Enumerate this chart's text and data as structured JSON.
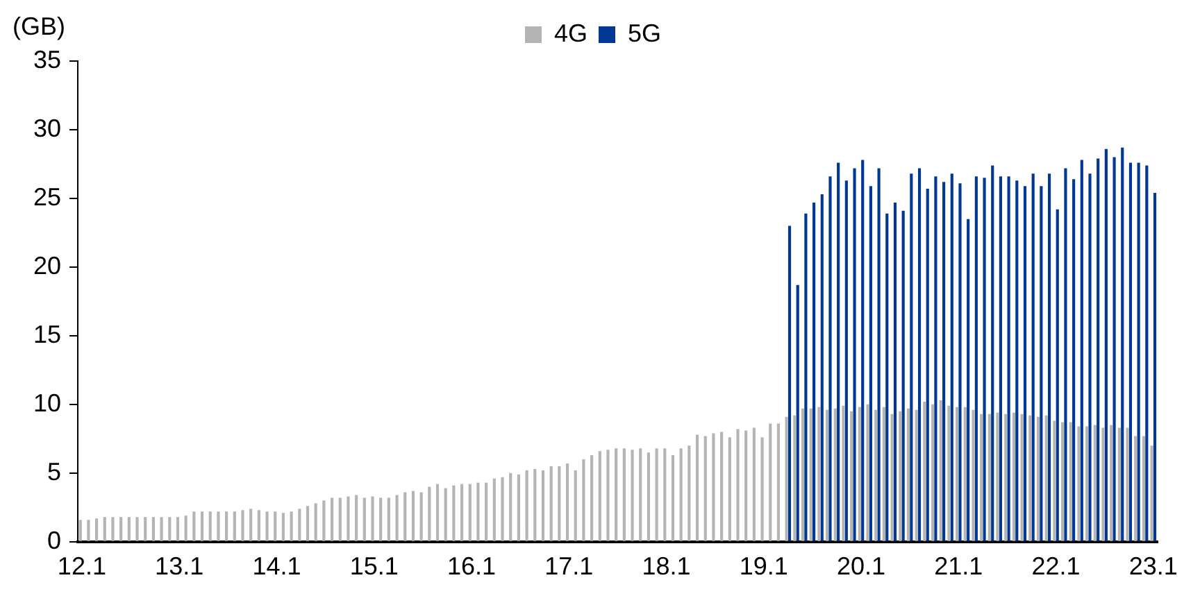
{
  "chart_data": {
    "type": "bar",
    "ylabel": "(GB)",
    "categories": [
      "12.1",
      null,
      null,
      null,
      null,
      null,
      null,
      null,
      null,
      null,
      null,
      null,
      "13.1",
      null,
      null,
      null,
      null,
      null,
      null,
      null,
      null,
      null,
      null,
      null,
      "14.1",
      null,
      null,
      null,
      null,
      null,
      null,
      null,
      null,
      null,
      null,
      null,
      "15.1",
      null,
      null,
      null,
      null,
      null,
      null,
      null,
      null,
      null,
      null,
      null,
      "16.1",
      null,
      null,
      null,
      null,
      null,
      null,
      null,
      null,
      null,
      null,
      null,
      "17.1",
      null,
      null,
      null,
      null,
      null,
      null,
      null,
      null,
      null,
      null,
      null,
      "18.1",
      null,
      null,
      null,
      null,
      null,
      null,
      null,
      null,
      null,
      null,
      null,
      "19.1",
      null,
      null,
      null,
      null,
      null,
      null,
      null,
      null,
      null,
      null,
      null,
      "20.1",
      null,
      null,
      null,
      null,
      null,
      null,
      null,
      null,
      null,
      null,
      null,
      "21.1",
      null,
      null,
      null,
      null,
      null,
      null,
      null,
      null,
      null,
      null,
      null,
      "22.1",
      null,
      null,
      null,
      null,
      null,
      null,
      null,
      null,
      null,
      null,
      null,
      "23.1"
    ],
    "series": [
      {
        "name": "4G",
        "color": "#b4b4b4",
        "values": [
          1.6,
          1.6,
          1.7,
          1.8,
          1.8,
          1.8,
          1.8,
          1.8,
          1.8,
          1.8,
          1.8,
          1.8,
          1.8,
          1.9,
          2.2,
          2.2,
          2.2,
          2.2,
          2.2,
          2.2,
          2.3,
          2.4,
          2.3,
          2.2,
          2.2,
          2.1,
          2.2,
          2.4,
          2.6,
          2.8,
          3.0,
          3.2,
          3.2,
          3.3,
          3.4,
          3.2,
          3.3,
          3.2,
          3.2,
          3.4,
          3.6,
          3.7,
          3.6,
          4.0,
          4.2,
          3.9,
          4.1,
          4.2,
          4.2,
          4.3,
          4.3,
          4.6,
          4.7,
          5.0,
          4.9,
          5.2,
          5.3,
          5.2,
          5.5,
          5.5,
          5.7,
          5.2,
          6.0,
          6.3,
          6.6,
          6.7,
          6.8,
          6.8,
          6.7,
          6.8,
          6.5,
          6.8,
          6.8,
          6.3,
          6.8,
          7.0,
          7.8,
          7.7,
          7.9,
          8.0,
          7.6,
          8.2,
          8.1,
          8.3,
          7.6,
          8.6,
          8.6,
          9.1,
          9.2,
          9.7,
          9.7,
          9.8,
          9.6,
          9.7,
          9.9,
          9.5,
          9.8,
          10.0,
          9.6,
          9.8,
          9.3,
          9.5,
          9.7,
          9.6,
          10.2,
          10.0,
          10.3,
          9.9,
          9.8,
          9.8,
          9.6,
          9.3,
          9.3,
          9.4,
          9.3,
          9.4,
          9.3,
          9.2,
          9.1,
          9.2,
          8.8,
          8.7,
          8.7,
          8.4,
          8.4,
          8.5,
          8.3,
          8.5,
          8.3,
          8.3,
          7.7,
          7.7,
          7.0
        ]
      },
      {
        "name": "5G",
        "color": "#003893",
        "values": [
          null,
          null,
          null,
          null,
          null,
          null,
          null,
          null,
          null,
          null,
          null,
          null,
          null,
          null,
          null,
          null,
          null,
          null,
          null,
          null,
          null,
          null,
          null,
          null,
          null,
          null,
          null,
          null,
          null,
          null,
          null,
          null,
          null,
          null,
          null,
          null,
          null,
          null,
          null,
          null,
          null,
          null,
          null,
          null,
          null,
          null,
          null,
          null,
          null,
          null,
          null,
          null,
          null,
          null,
          null,
          null,
          null,
          null,
          null,
          null,
          null,
          null,
          null,
          null,
          null,
          null,
          null,
          null,
          null,
          null,
          null,
          null,
          null,
          null,
          null,
          null,
          null,
          null,
          null,
          null,
          null,
          null,
          null,
          null,
          null,
          null,
          null,
          23.0,
          18.7,
          23.9,
          24.7,
          25.3,
          26.6,
          27.6,
          26.3,
          27.2,
          27.8,
          25.9,
          27.2,
          23.9,
          24.7,
          24.1,
          26.8,
          27.2,
          25.7,
          26.6,
          26.2,
          26.8,
          26.1,
          23.5,
          26.6,
          26.5,
          27.4,
          26.6,
          26.6,
          26.3,
          25.9,
          26.8,
          25.9,
          26.8,
          24.2,
          27.2,
          26.4,
          27.8,
          26.8,
          27.9,
          28.6,
          28.0,
          28.7,
          27.6,
          27.6,
          27.4,
          25.4
        ]
      }
    ],
    "ylim": [
      0,
      35
    ],
    "yticks": [
      0,
      5,
      10,
      15,
      20,
      25,
      30,
      35
    ],
    "grid": false,
    "legend": "top"
  }
}
